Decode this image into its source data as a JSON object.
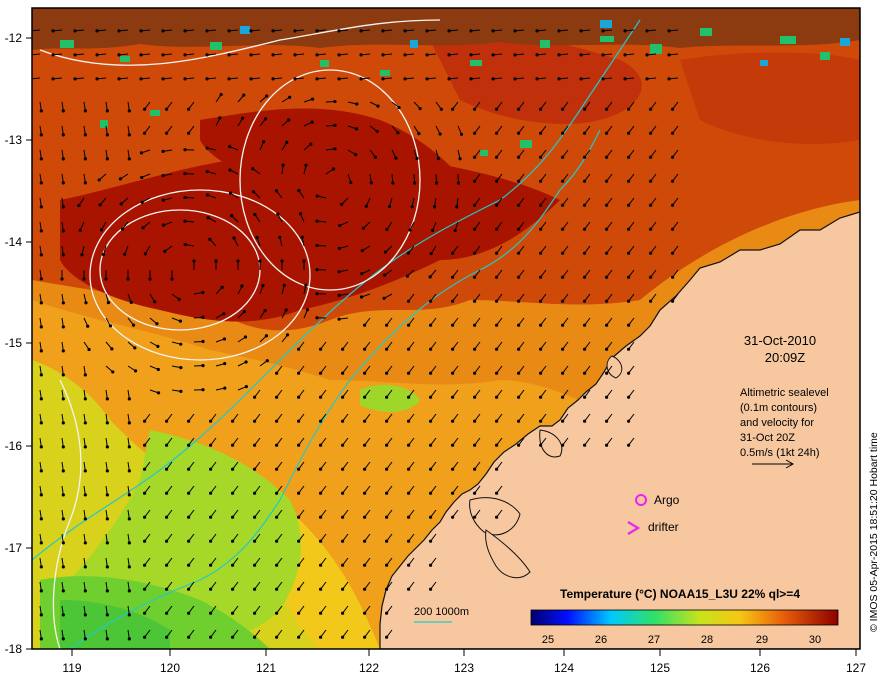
{
  "map": {
    "lon_ticks": [
      "119",
      "120",
      "121",
      "122",
      "123",
      "124",
      "125",
      "126",
      "127"
    ],
    "lat_ticks": [
      "-12",
      "-13",
      "-14",
      "-15",
      "-16",
      "-17",
      "-18"
    ],
    "date_line": "31-Oct-2010",
    "time_line": "20:09Z",
    "altimetry_lines": [
      "Altimetric sealevel",
      "(0.1m contours)",
      "and velocity for",
      "31-Oct 20Z",
      "0.5m/s (1kt 24h)"
    ],
    "legend_argo": "Argo",
    "legend_drifter": "drifter",
    "isobath_label": "200  1000m",
    "colorbar_title": "Temperature (°C) NOAA15_L3U 22% ql>=4",
    "colorbar_ticks": [
      "25",
      "26",
      "27",
      "28",
      "29",
      "30"
    ],
    "credit": "© IMOS 05-Apr-2015 18:51:20 Hobart time",
    "colors": {
      "land": "#f7c8a0",
      "hot": "#a81400",
      "warm": "#e46a0c",
      "mid": "#f1a21a",
      "cool": "#d8d41c",
      "green": "#7ccf2a",
      "isobath": "#22c9c9",
      "argo": "#ee22ee"
    }
  }
}
